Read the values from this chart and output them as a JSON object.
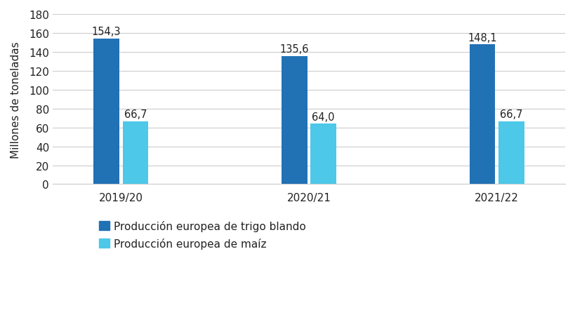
{
  "categories": [
    "2019/20",
    "2020/21",
    "2021/22"
  ],
  "trigo_values": [
    154.3,
    135.6,
    148.1
  ],
  "maiz_values": [
    66.7,
    64.0,
    66.7
  ],
  "trigo_color": "#2171B5",
  "maiz_color": "#4DC8E8",
  "ylabel": "Millones de toneladas",
  "ylim": [
    0,
    180
  ],
  "yticks": [
    0,
    20,
    40,
    60,
    80,
    100,
    120,
    140,
    160,
    180
  ],
  "legend_trigo": "Producción europea de trigo blando",
  "legend_maiz": "Producción europea de maíz",
  "bar_width": 0.3,
  "bar_gap": 0.04,
  "label_fontsize": 10.5,
  "tick_fontsize": 11,
  "ylabel_fontsize": 11,
  "legend_fontsize": 11,
  "background_color": "#ffffff",
  "grid_color": "#cccccc"
}
